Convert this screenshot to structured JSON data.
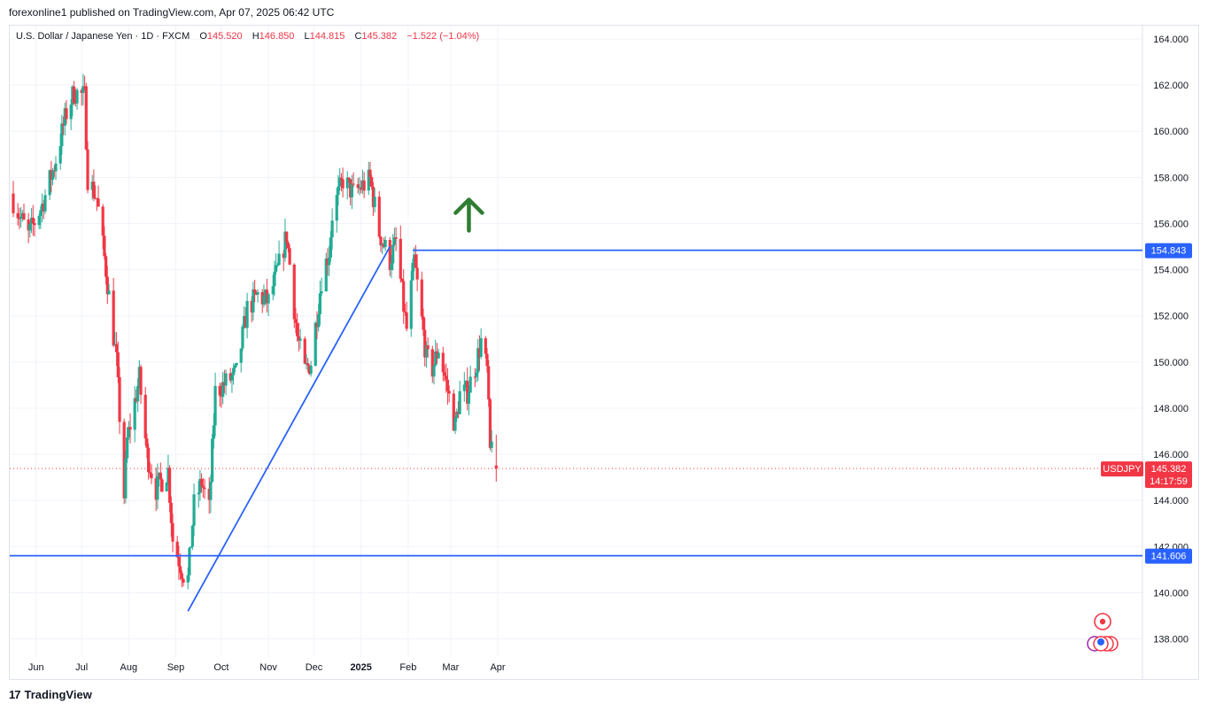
{
  "header": {
    "publish_line": "forexonline1 published on TradingView.com, Apr 07, 2025 06:42 UTC"
  },
  "legend": {
    "symbol_desc": "U.S. Dollar / Japanese Yen · 1D · FXCM",
    "o_label": "O",
    "o_value": "145.520",
    "h_label": "H",
    "h_value": "146.850",
    "l_label": "L",
    "l_value": "144.815",
    "c_label": "C",
    "c_value": "145.382",
    "change": "−1.522 (−1.04%)"
  },
  "footer": {
    "brand": "TradingView",
    "logo_glyph": "17"
  },
  "colors": {
    "up": "#22ab94",
    "down": "#f23645",
    "line": "#2962ff",
    "arrow": "#2e7d32",
    "grid": "#f0f3fa",
    "text": "#131722"
  },
  "chart_data": {
    "type": "candlestick",
    "symbol": "USDJPY",
    "timeframe": "1D",
    "x_tick_labels": [
      "Jun",
      "Jul",
      "Aug",
      "Sep",
      "Oct",
      "Nov",
      "Dec",
      "2025",
      "Feb",
      "Mar",
      "Apr"
    ],
    "y_tick_labels": [
      "138.000",
      "140.000",
      "142.000",
      "144.000",
      "146.000",
      "148.000",
      "150.000",
      "152.000",
      "154.000",
      "156.000",
      "158.000",
      "160.000",
      "162.000",
      "164.000"
    ],
    "ylim": [
      137.3,
      164.3
    ],
    "grid": true,
    "price_tag": {
      "label": "USDJPY",
      "value": "145.382",
      "countdown": "14:17:59"
    },
    "horizontal_levels": [
      {
        "value": 154.843,
        "label": "154.843",
        "from_date": "2025-02-11"
      },
      {
        "value": 141.606,
        "label": "141.606",
        "from_date": "2024-05-24"
      }
    ],
    "trendline": {
      "start": [
        "2024-09-16",
        139.2
      ],
      "end": [
        "2025-01-27",
        155.0
      ]
    },
    "annotation": {
      "type": "up-arrow",
      "date": "2025-03-20",
      "value": 156.5
    },
    "x_start_date": "2024-05-24",
    "close_anchors": [
      [
        "2024-05-24",
        157.0
      ],
      [
        "2024-06-03",
        155.5
      ],
      [
        "2024-06-12",
        156.8
      ],
      [
        "2024-06-20",
        158.5
      ],
      [
        "2024-06-28",
        160.8
      ],
      [
        "2024-07-03",
        161.7
      ],
      [
        "2024-07-10",
        161.5
      ],
      [
        "2024-07-12",
        158.0
      ],
      [
        "2024-07-18",
        157.1
      ],
      [
        "2024-07-24",
        154.0
      ],
      [
        "2024-07-31",
        150.0
      ],
      [
        "2024-08-05",
        144.2
      ],
      [
        "2024-08-07",
        146.6
      ],
      [
        "2024-08-15",
        149.3
      ],
      [
        "2024-08-20",
        146.0
      ],
      [
        "2024-08-26",
        144.5
      ],
      [
        "2024-09-03",
        145.3
      ],
      [
        "2024-09-06",
        142.3
      ],
      [
        "2024-09-13",
        140.8
      ],
      [
        "2024-09-16",
        140.6
      ],
      [
        "2024-09-20",
        143.8
      ],
      [
        "2024-09-25",
        144.8
      ],
      [
        "2024-09-30",
        143.6
      ],
      [
        "2024-10-04",
        148.7
      ],
      [
        "2024-10-11",
        149.1
      ],
      [
        "2024-10-18",
        149.5
      ],
      [
        "2024-10-25",
        152.3
      ],
      [
        "2024-11-01",
        152.9
      ],
      [
        "2024-11-08",
        152.6
      ],
      [
        "2024-11-15",
        154.2
      ],
      [
        "2024-11-20",
        155.5
      ],
      [
        "2024-11-27",
        151.1
      ],
      [
        "2024-12-02",
        149.6
      ],
      [
        "2024-12-06",
        150.0
      ],
      [
        "2024-12-13",
        153.6
      ],
      [
        "2024-12-18",
        154.8
      ],
      [
        "2024-12-20",
        156.4
      ],
      [
        "2024-12-27",
        157.9
      ],
      [
        "2025-01-03",
        157.3
      ],
      [
        "2025-01-10",
        157.7
      ],
      [
        "2025-01-14",
        157.9
      ],
      [
        "2025-01-20",
        155.6
      ],
      [
        "2025-01-27",
        154.4
      ],
      [
        "2025-01-31",
        155.2
      ],
      [
        "2025-02-05",
        152.4
      ],
      [
        "2025-02-07",
        151.4
      ],
      [
        "2025-02-12",
        154.4
      ],
      [
        "2025-02-20",
        150.2
      ],
      [
        "2025-02-24",
        149.7
      ],
      [
        "2025-02-28",
        150.6
      ],
      [
        "2025-03-05",
        149.1
      ],
      [
        "2025-03-11",
        147.2
      ],
      [
        "2025-03-14",
        148.6
      ],
      [
        "2025-03-19",
        148.7
      ],
      [
        "2025-03-25",
        150.0
      ],
      [
        "2025-03-28",
        150.9
      ],
      [
        "2025-04-01",
        149.6
      ],
      [
        "2025-04-03",
        146.1
      ],
      [
        "2025-04-04",
        146.9
      ],
      [
        "2025-04-07",
        145.382
      ]
    ]
  }
}
